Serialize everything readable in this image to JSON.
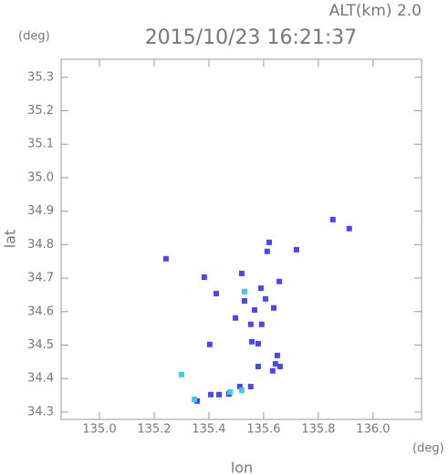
{
  "chart_data": {
    "type": "scatter",
    "title": "2015/10/23 16:21:37",
    "subtitle": "ALT(km) 2.0",
    "y_unit": "(deg)",
    "x_unit": "(deg)",
    "xlabel": "lon",
    "ylabel": "lat",
    "xlim": [
      134.86,
      136.177
    ],
    "ylim": [
      34.278,
      35.354
    ],
    "xticks": [
      {
        "value": 135,
        "label": "135.0"
      },
      135.2,
      135.4,
      135.6,
      135.8,
      {
        "value": 136,
        "label": "136.0"
      }
    ],
    "yticks": [
      34.3,
      34.4,
      34.5,
      34.6,
      34.7,
      34.8,
      34.9,
      {
        "value": 35,
        "label": "35.0"
      },
      35.1,
      35.2,
      35.3
    ],
    "series": [
      {
        "color": "#4848f0",
        "x": [
          135.853,
          135.913,
          135.72,
          135.62,
          135.613,
          135.243,
          135.383,
          135.52,
          135.427,
          135.59,
          135.657,
          135.53,
          135.607,
          135.637,
          135.497,
          135.567,
          135.593,
          135.553,
          135.557,
          135.58,
          135.403,
          135.65,
          135.643,
          135.633,
          135.66,
          135.58,
          135.513,
          135.553,
          135.473,
          135.407,
          135.437,
          135.357
        ],
        "y": [
          34.875,
          34.848,
          34.785,
          34.807,
          34.78,
          34.758,
          34.703,
          34.714,
          34.654,
          34.67,
          34.69,
          34.632,
          34.638,
          34.611,
          34.581,
          34.605,
          34.562,
          34.562,
          34.51,
          34.504,
          34.502,
          34.469,
          34.444,
          34.423,
          34.436,
          34.436,
          34.376,
          34.376,
          34.354,
          34.352,
          34.352,
          34.333
        ]
      },
      {
        "color": "#40c8f0",
        "x": [
          135.3,
          135.477,
          135.52,
          135.347,
          135.53
        ],
        "y": [
          34.412,
          34.36,
          34.365,
          34.338,
          34.66
        ]
      }
    ]
  }
}
